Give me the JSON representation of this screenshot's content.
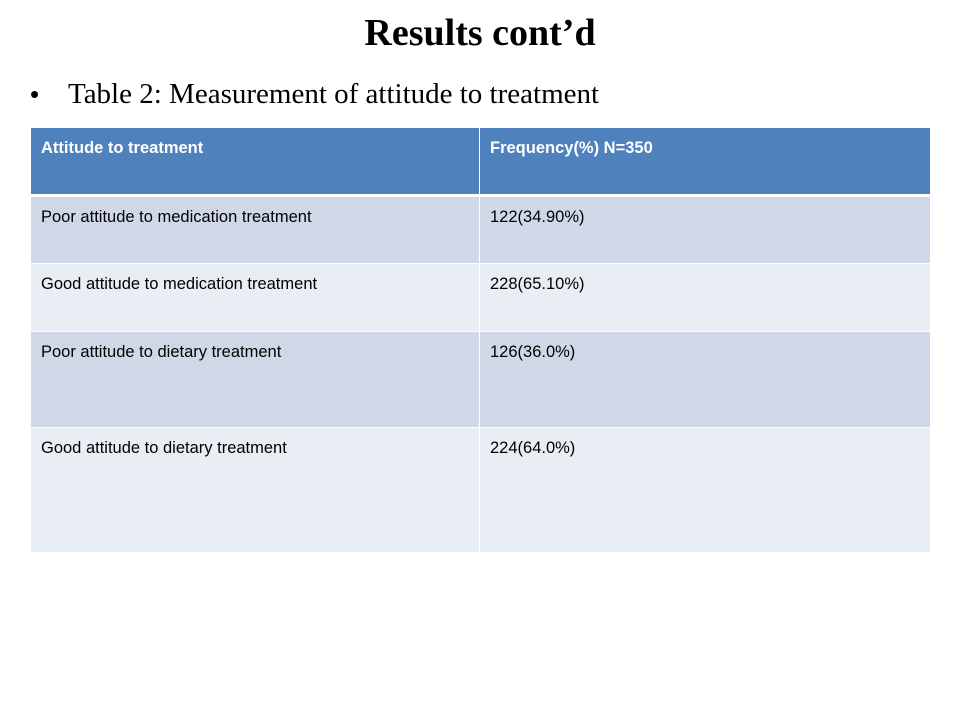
{
  "slide": {
    "title": "Results cont’d",
    "bullet": "Table 2: Measurement  of attitude to treatment"
  },
  "table": {
    "headers": [
      "Attitude to treatment",
      "Frequency(%) N=350"
    ],
    "rows": [
      [
        "Poor attitude to medication treatment",
        "122(34.90%)"
      ],
      [
        "Good attitude to medication treatment",
        "228(65.10%)"
      ],
      [
        "Poor attitude to dietary treatment",
        "126(36.0%)"
      ],
      [
        "Good attitude to dietary treatment",
        "224(64.0%)"
      ]
    ]
  },
  "colors": {
    "header_bg": "#4f81bd",
    "row_odd_bg": "#d0d8e8",
    "row_even_bg": "#e9edf4"
  }
}
